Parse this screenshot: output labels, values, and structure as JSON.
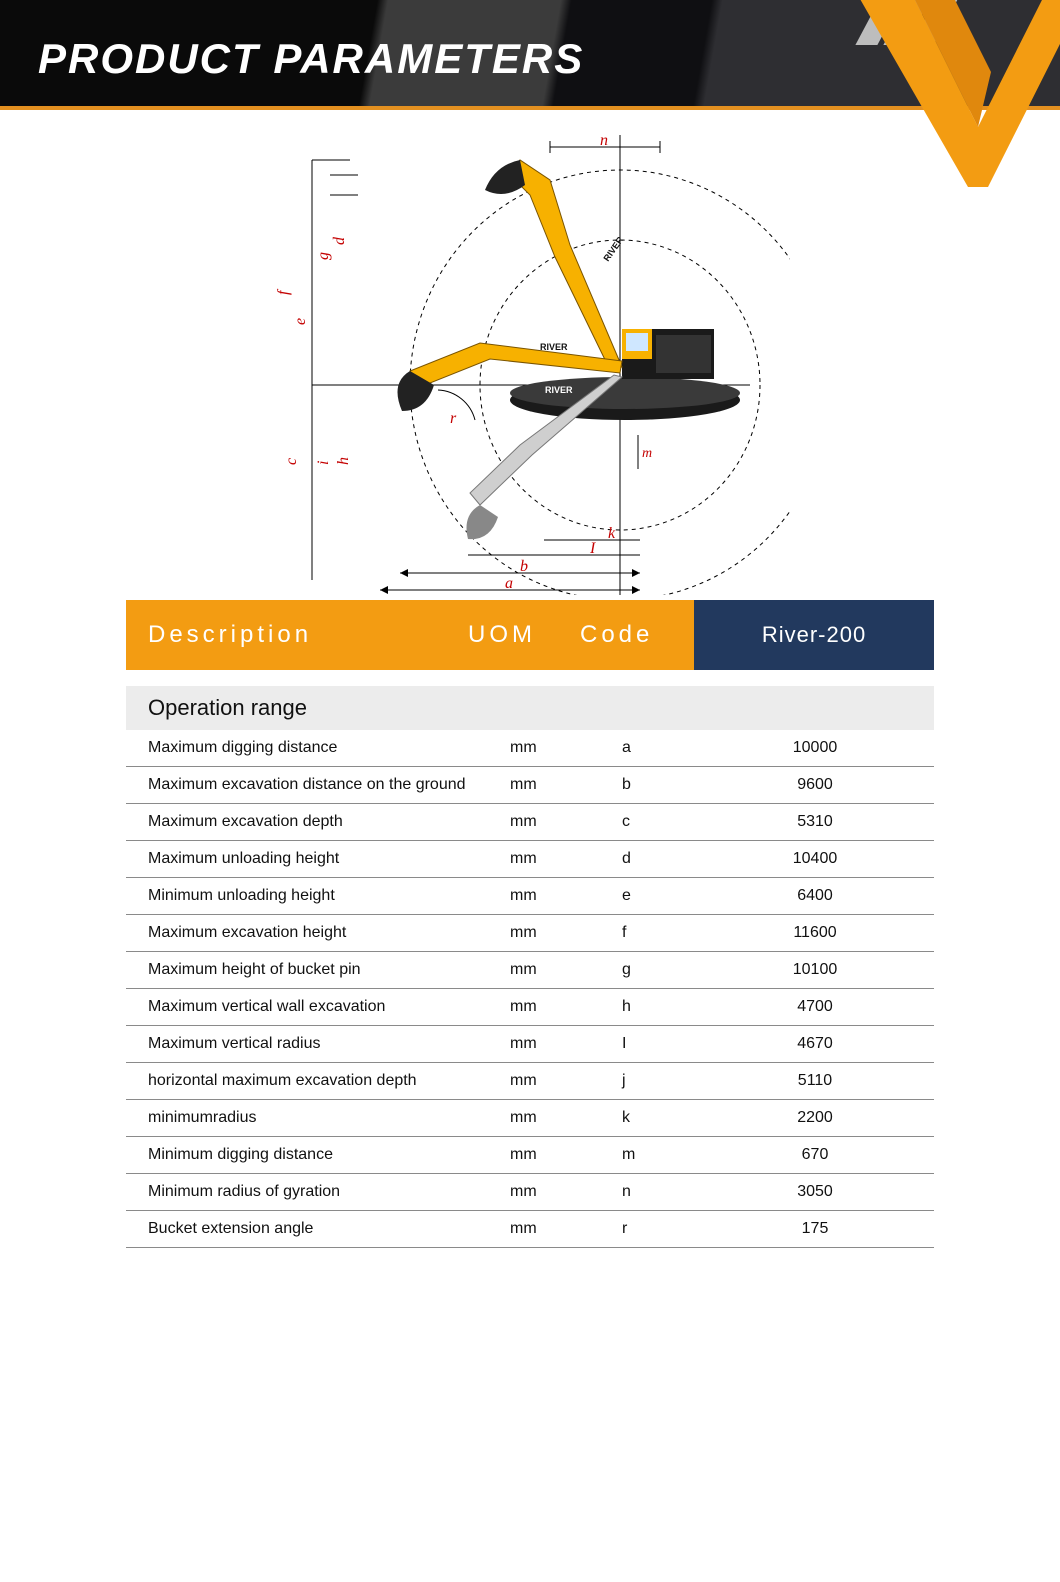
{
  "colors": {
    "orange": "#f39c12",
    "blue": "#22395e",
    "grey_section": "#ececec",
    "row_border": "#8a8a8a",
    "header_black": "#0a0a0a",
    "header_grey": "#3b3b3b",
    "diagram_red": "#c40202",
    "diagram_yellow": "#f7b100",
    "diagram_black": "#111111"
  },
  "header": {
    "title": "PRODUCT PARAMETERS"
  },
  "table_header": {
    "description": "Description",
    "uom": "UOM",
    "code": "Code",
    "model": "River-200"
  },
  "section": {
    "title": "Operation range"
  },
  "rows": [
    {
      "desc": "Maximum digging distance",
      "uom": "mm",
      "code": "a",
      "val": "10000"
    },
    {
      "desc": "Maximum excavation distance on the ground",
      "uom": "mm",
      "code": "b",
      "val": "9600"
    },
    {
      "desc": "Maximum excavation depth",
      "uom": "mm",
      "code": "c",
      "val": "5310"
    },
    {
      "desc": "Maximum unloading height",
      "uom": "mm",
      "code": "d",
      "val": "10400"
    },
    {
      "desc": "Minimum unloading height",
      "uom": "mm",
      "code": "e",
      "val": "6400"
    },
    {
      "desc": "Maximum excavation height",
      "uom": "mm",
      "code": "f",
      "val": "11600"
    },
    {
      "desc": "Maximum height of bucket pin",
      "uom": "mm",
      "code": "g",
      "val": "10100"
    },
    {
      "desc": "Maximum vertical wall excavation",
      "uom": "mm",
      "code": "h",
      "val": "4700"
    },
    {
      "desc": "Maximum vertical radius",
      "uom": "mm",
      "code": "I",
      "val": "4670"
    },
    {
      "desc": "horizontal maximum excavation depth",
      "uom": "mm",
      "code": "j",
      "val": "5110"
    },
    {
      "desc": "minimumradius",
      "uom": "mm",
      "code": "k",
      "val": "2200"
    },
    {
      "desc": "Minimum digging distance",
      "uom": "mm",
      "code": "m",
      "val": "670"
    },
    {
      "desc": "Minimum radius of gyration",
      "uom": "mm",
      "code": "n",
      "val": "3050"
    },
    {
      "desc": "Bucket extension angle",
      "uom": "mm",
      "code": "r",
      "val": "175"
    }
  ],
  "diagram": {
    "labels": [
      "a",
      "b",
      "c",
      "d",
      "e",
      "f",
      "g",
      "h",
      "i",
      "j",
      "I",
      "k",
      "m",
      "n",
      "r"
    ],
    "label_color": "#c40202",
    "label_fontsize": 14
  }
}
